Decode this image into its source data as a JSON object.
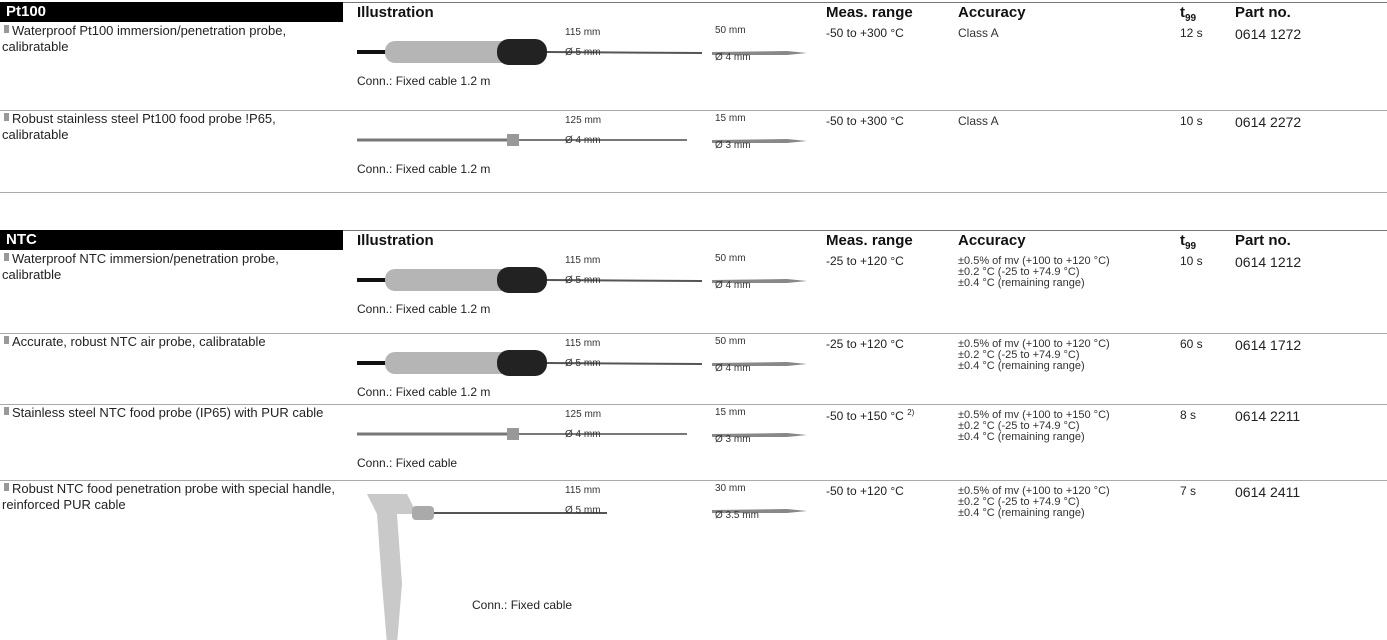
{
  "sections": [
    {
      "header": {
        "name": "Pt100",
        "illustration": "Illustration",
        "range": "Meas. range",
        "accuracy": "Accuracy",
        "t99": {
          "t": "t",
          "sub": "99"
        },
        "part": "Part no."
      },
      "rows": [
        {
          "description": "Waterproof Pt100 immersion/penetration probe, calibratable",
          "length": "115 mm",
          "diameter": "Ø 5 mm",
          "tip_length": "50 mm",
          "tip_diameter": "Ø 4 mm",
          "connection": "Conn.: Fixed cable 1.2 m",
          "range": "-50 to +300 °C",
          "accuracy": [
            "Class A"
          ],
          "t99": "12 s",
          "part": "0614 1272"
        },
        {
          "description": "Robust stainless steel Pt100 food probe !P65, calibratable",
          "length": "125 mm",
          "diameter": "Ø 4 mm",
          "tip_length": "15 mm",
          "tip_diameter": "Ø 3 mm",
          "connection": "Conn.: Fixed cable 1.2 m",
          "range": "-50 to +300 °C",
          "accuracy": [
            "Class A"
          ],
          "t99": "10 s",
          "part": "0614 2272"
        }
      ]
    },
    {
      "header": {
        "name": "NTC",
        "illustration": "Illustration",
        "range": "Meas. range",
        "accuracy": "Accuracy",
        "t99": {
          "t": "t",
          "sub": "99"
        },
        "part": "Part no."
      },
      "rows": [
        {
          "description": "Waterproof NTC immersion/penetration probe, calibratble",
          "length": "115 mm",
          "diameter": "Ø 5 mm",
          "tip_length": "50 mm",
          "tip_diameter": "Ø 4 mm",
          "connection": "Conn.: Fixed cable 1.2 m",
          "range": "-25 to +120 °C",
          "accuracy": [
            "±0.5% of mv (+100 to +120 °C)",
            "±0.2 °C (-25 to +74.9 °C)",
            "±0.4 °C (remaining range)"
          ],
          "t99": "10 s",
          "part": "0614 1212"
        },
        {
          "description": "Accurate, robust NTC air probe, calibratable",
          "length": "115 mm",
          "diameter": "Ø 5 mm",
          "tip_length": "50 mm",
          "tip_diameter": "Ø 4 mm",
          "connection": "Conn.: Fixed cable 1.2 m",
          "range": "-25 to +120 °C",
          "accuracy": [
            "±0.5% of mv (+100 to +120 °C)",
            "±0.2 °C (-25 to +74.9 °C)",
            "±0.4 °C (remaining range)"
          ],
          "t99": "60 s",
          "part": "0614 1712"
        },
        {
          "description": "Stainless steel NTC food probe (IP65) with PUR cable",
          "length": "125 mm",
          "diameter": "Ø 4 mm",
          "tip_length": "15 mm",
          "tip_diameter": "Ø 3 mm",
          "connection": "Conn.: Fixed cable",
          "range": "-50 to +150 °C",
          "range_note": "2)",
          "accuracy": [
            "±0.5% of mv (+100 to +150 °C)",
            "±0.2 °C (-25 to +74.9 °C)",
            "±0.4 °C (remaining range)"
          ],
          "t99": "8 s",
          "part": "0614 2211"
        },
        {
          "description": "Robust NTC food penetration probe with special handle, reinforced PUR cable",
          "length": "115 mm",
          "diameter": "Ø 5 mm",
          "tip_length": "30 mm",
          "tip_diameter": "Ø 3.5 mm",
          "connection": "Conn.: Fixed cable",
          "range": "-50 to +120 °C",
          "accuracy": [
            "±0.5% of mv (+100 to +120 °C)",
            "±0.2 °C (-25 to +74.9 °C)",
            "±0.4 °C (remaining range)"
          ],
          "t99": "7 s",
          "part": "0614 2411"
        }
      ]
    }
  ]
}
